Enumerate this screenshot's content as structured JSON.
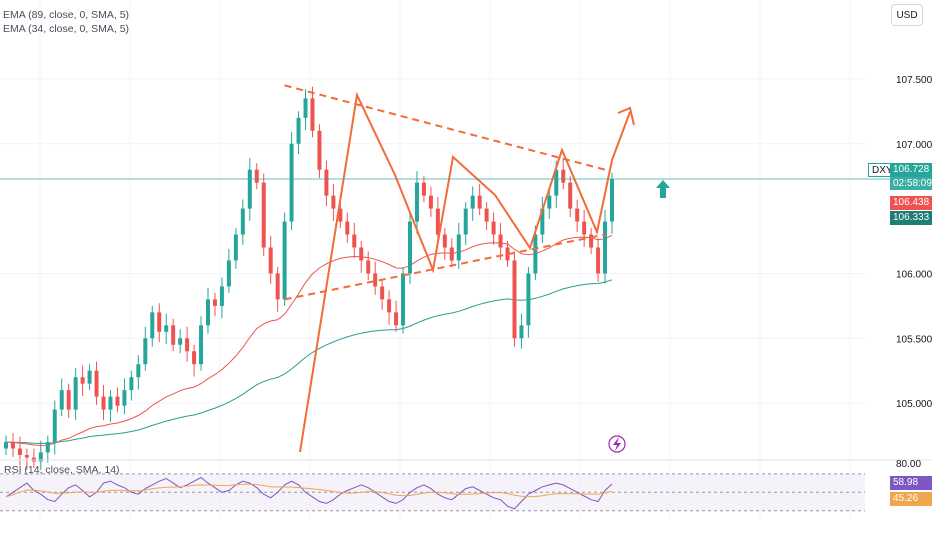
{
  "header": {
    "indicator_1": "EMA (89, close, 0, SMA, 5)",
    "indicator_2": "EMA (34, close, 0, SMA, 5)",
    "currency": "USD"
  },
  "symbol": "DXY",
  "last_price": "106.728",
  "countdown": "02:58:09",
  "ema34_value": "106.438",
  "ema89_value": "106.333",
  "rsi": {
    "legend": "RSI (14, close, SMA, 14)",
    "value": "58.98",
    "ma_value": "45.26",
    "top_level": "80.00"
  },
  "colors": {
    "up": "#26a69a",
    "down": "#ef5350",
    "ema34": "#ef5350",
    "ema89": "#2a9d8f",
    "drawing": "#f26b38",
    "rsi": "#7e57c2",
    "rsi_ma": "#f0a64c"
  },
  "chart_data": {
    "type": "candlestick",
    "title": "",
    "symbol": "DXY",
    "y_ticks": [
      "107.500",
      "107.000",
      "106.000",
      "105.500",
      "105.000"
    ],
    "ylim": [
      104.6,
      107.8
    ],
    "price_line": 106.728,
    "series": [
      {
        "name": "EMA (89, close, 0, SMA, 5)",
        "role": "ema89"
      },
      {
        "name": "EMA (34, close, 0, SMA, 5)",
        "role": "ema34"
      }
    ],
    "closes": [
      104.7,
      104.65,
      104.6,
      104.58,
      104.55,
      104.62,
      104.7,
      104.95,
      105.1,
      104.95,
      105.2,
      105.15,
      105.25,
      105.05,
      104.95,
      105.05,
      104.98,
      105.1,
      105.2,
      105.3,
      105.5,
      105.7,
      105.55,
      105.6,
      105.45,
      105.5,
      105.4,
      105.3,
      105.6,
      105.8,
      105.75,
      105.9,
      106.1,
      106.3,
      106.5,
      106.8,
      106.7,
      106.2,
      106.0,
      105.8,
      106.4,
      107.0,
      107.2,
      107.35,
      107.1,
      106.8,
      106.6,
      106.5,
      106.4,
      106.3,
      106.2,
      106.1,
      106.0,
      105.9,
      105.8,
      105.7,
      105.6,
      106.0,
      106.4,
      106.7,
      106.6,
      106.5,
      106.3,
      106.2,
      106.1,
      106.3,
      106.5,
      106.6,
      106.5,
      106.4,
      106.3,
      106.2,
      106.1,
      105.5,
      105.6,
      106.0,
      106.3,
      106.5,
      106.6,
      106.8,
      106.7,
      106.5,
      106.4,
      106.3,
      106.2,
      106.0,
      106.4,
      106.728
    ],
    "annotations": [
      {
        "type": "trendline",
        "style": "dashed",
        "from": {
          "bar": 40,
          "price": 107.45
        },
        "to": {
          "bar": 86,
          "price": 106.8
        }
      },
      {
        "type": "trendline",
        "style": "dashed",
        "from": {
          "bar": 40,
          "price": 105.8
        },
        "to": {
          "bar": 86,
          "price": 106.3
        }
      },
      {
        "type": "arrow",
        "direction": "up",
        "color": "#26a69a"
      }
    ],
    "rsi": {
      "levels": [
        80,
        70,
        50,
        30
      ],
      "ylim": [
        20,
        85
      ],
      "values": [
        45,
        50,
        55,
        60,
        52,
        48,
        42,
        40,
        48,
        55,
        58,
        52,
        45,
        50,
        60,
        62,
        58,
        55,
        50,
        48,
        54,
        58,
        62,
        65,
        60,
        55,
        58,
        62,
        66,
        60,
        55,
        50,
        52,
        58,
        62,
        60,
        55,
        48,
        44,
        50,
        58,
        62,
        58,
        50,
        45,
        40,
        38,
        42,
        48,
        52,
        55,
        58,
        55,
        50,
        45,
        40,
        38,
        42,
        50,
        55,
        58,
        54,
        48,
        44,
        42,
        48,
        54,
        56,
        52,
        48,
        44,
        42,
        35,
        32,
        40,
        48,
        52,
        56,
        58,
        60,
        58,
        54,
        50,
        46,
        42,
        40,
        52,
        58.98
      ]
    }
  }
}
